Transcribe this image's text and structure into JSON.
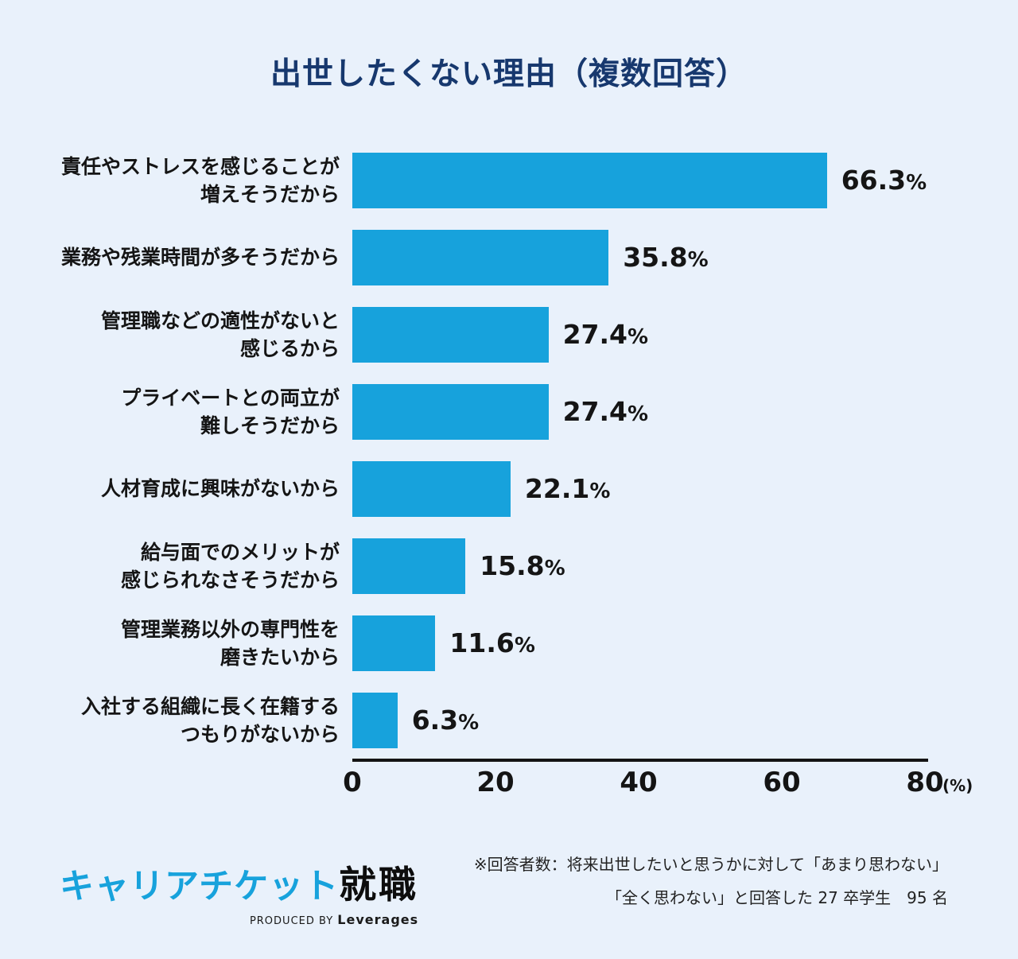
{
  "title": "出世したくない理由（複数回答）",
  "chart_data": {
    "type": "bar",
    "orientation": "horizontal",
    "title": "出世したくない理由（複数回答）",
    "categories": [
      [
        "責任やストレスを感じることが",
        "増えそうだから"
      ],
      [
        "業務や残業時間が多そうだから"
      ],
      [
        "管理職などの適性がないと",
        "感じるから"
      ],
      [
        "プライベートとの両立が",
        "難しそうだから"
      ],
      [
        "人材育成に興味がないから"
      ],
      [
        "給与面でのメリットが",
        "感じられなさそうだから"
      ],
      [
        "管理業務以外の専門性を",
        "磨きたいから"
      ],
      [
        "入社する組織に長く在籍する",
        "つもりがないから"
      ]
    ],
    "values": [
      66.3,
      35.8,
      27.4,
      27.4,
      22.1,
      15.8,
      11.6,
      6.3
    ],
    "value_suffix": "%",
    "xlim": [
      0,
      80
    ],
    "xticks": [
      0,
      20,
      40,
      60,
      80
    ],
    "x_unit_label": "(%)",
    "legend": "none",
    "grid": "off",
    "bar_color": "#17a2dc"
  },
  "footer": {
    "logo_primary": "キャリアチケット",
    "logo_secondary": "就職",
    "produced_by": "PRODUCED BY",
    "leverages": "Leverages",
    "note_line1": "※回答者数：将来出世したいと思うかに対して「あまり思わない」",
    "note_line2": "「全く思わない」と回答した 27 卒学生　95 名"
  },
  "colors": {
    "background": "#e9f1fb",
    "title": "#17386e",
    "bar": "#17a2dc",
    "text": "#151515"
  }
}
